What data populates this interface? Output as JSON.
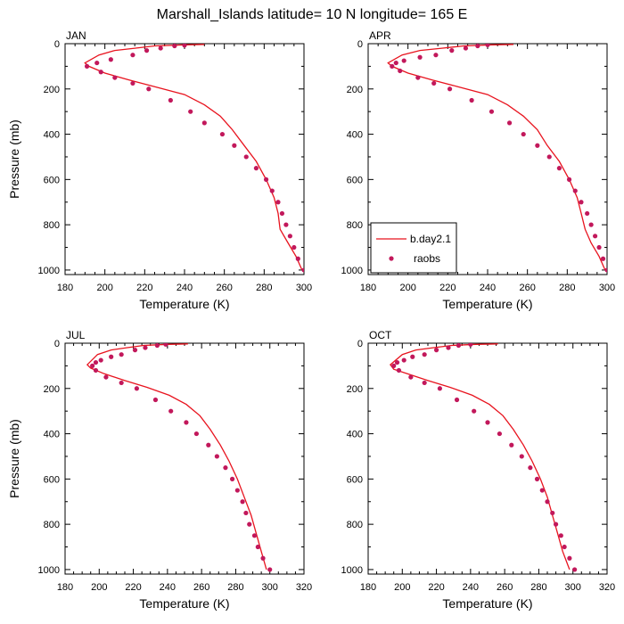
{
  "figure": {
    "title": "Marshall_Islands  latitude= 10 N longitude= 165 E",
    "model_color": "#e8131e",
    "obs_color": "#c2185b"
  },
  "chart_data": [
    {
      "type": "line",
      "panel_label": "JAN",
      "xlabel": "Temperature (K)",
      "ylabel": "Pressure (mb)",
      "xlim": [
        180,
        300
      ],
      "ylim": [
        1020,
        0
      ],
      "xticks": [
        180,
        200,
        220,
        240,
        260,
        280,
        300
      ],
      "yticks": [
        0,
        200,
        400,
        600,
        800,
        1000
      ],
      "legend": null,
      "series": [
        {
          "name": "b.day2.1",
          "kind": "line",
          "points": [
            [
              250,
              3
            ],
            [
              240,
              5
            ],
            [
              225,
              10
            ],
            [
              215,
              20
            ],
            [
              205,
              30
            ],
            [
              197,
              50
            ],
            [
              190,
              85
            ],
            [
              192,
              100
            ],
            [
              200,
              130
            ],
            [
              212,
              160
            ],
            [
              225,
              190
            ],
            [
              240,
              225
            ],
            [
              250,
              270
            ],
            [
              258,
              320
            ],
            [
              264,
              380
            ],
            [
              270,
              450
            ],
            [
              276,
              520
            ],
            [
              281,
              600
            ],
            [
              285,
              680
            ],
            [
              287,
              750
            ],
            [
              288,
              820
            ],
            [
              292,
              880
            ],
            [
              296,
              940
            ],
            [
              299,
              1000
            ]
          ]
        },
        {
          "name": "raobs",
          "kind": "marker",
          "points": [
            [
              240,
              7
            ],
            [
              235,
              10
            ],
            [
              228,
              20
            ],
            [
              221,
              30
            ],
            [
              214,
              50
            ],
            [
              203,
              70
            ],
            [
              196,
              85
            ],
            [
              191,
              100
            ],
            [
              198,
              125
            ],
            [
              205,
              150
            ],
            [
              214,
              175
            ],
            [
              222,
              200
            ],
            [
              233,
              250
            ],
            [
              243,
              300
            ],
            [
              250,
              350
            ],
            [
              259,
              400
            ],
            [
              265,
              450
            ],
            [
              271,
              500
            ],
            [
              276,
              550
            ],
            [
              281,
              600
            ],
            [
              284,
              650
            ],
            [
              287,
              700
            ],
            [
              289,
              750
            ],
            [
              291,
              800
            ],
            [
              293,
              850
            ],
            [
              295,
              900
            ],
            [
              297,
              950
            ],
            [
              300,
              1000
            ]
          ]
        }
      ]
    },
    {
      "type": "line",
      "panel_label": "APR",
      "xlabel": "Temperature (K)",
      "ylabel": "",
      "xlim": [
        180,
        300
      ],
      "ylim": [
        1020,
        0
      ],
      "xticks": [
        180,
        200,
        220,
        240,
        260,
        280,
        300
      ],
      "yticks": [
        0,
        200,
        400,
        600,
        800,
        1000
      ],
      "legend": {
        "position": "bottom-left",
        "entries": [
          "b.day2.1",
          "raobs"
        ]
      },
      "series": [
        {
          "name": "b.day2.1",
          "kind": "line",
          "points": [
            [
              253,
              3
            ],
            [
              242,
              5
            ],
            [
              228,
              10
            ],
            [
              217,
              20
            ],
            [
              206,
              30
            ],
            [
              197,
              50
            ],
            [
              190,
              85
            ],
            [
              192,
              100
            ],
            [
              200,
              130
            ],
            [
              212,
              160
            ],
            [
              225,
              190
            ],
            [
              240,
              225
            ],
            [
              250,
              270
            ],
            [
              258,
              320
            ],
            [
              265,
              380
            ],
            [
              270,
              450
            ],
            [
              276,
              520
            ],
            [
              281,
              600
            ],
            [
              285,
              680
            ],
            [
              287,
              750
            ],
            [
              289,
              820
            ],
            [
              292,
              880
            ],
            [
              296,
              940
            ],
            [
              299,
              1000
            ]
          ]
        },
        {
          "name": "raobs",
          "kind": "marker",
          "points": [
            [
              240,
              5
            ],
            [
              235,
              10
            ],
            [
              229,
              20
            ],
            [
              222,
              30
            ],
            [
              214,
              50
            ],
            [
              206,
              60
            ],
            [
              198,
              75
            ],
            [
              194,
              85
            ],
            [
              192,
              100
            ],
            [
              196,
              120
            ],
            [
              205,
              150
            ],
            [
              213,
              175
            ],
            [
              221,
              200
            ],
            [
              232,
              250
            ],
            [
              242,
              300
            ],
            [
              251,
              350
            ],
            [
              258,
              400
            ],
            [
              265,
              450
            ],
            [
              271,
              500
            ],
            [
              276,
              550
            ],
            [
              281,
              600
            ],
            [
              284,
              650
            ],
            [
              287,
              700
            ],
            [
              290,
              750
            ],
            [
              292,
              800
            ],
            [
              294,
              850
            ],
            [
              296,
              900
            ],
            [
              298,
              950
            ],
            [
              300,
              1000
            ]
          ]
        }
      ]
    },
    {
      "type": "line",
      "panel_label": "JUL",
      "xlabel": "Temperature (K)",
      "ylabel": "Pressure (mb)",
      "xlim": [
        180,
        320
      ],
      "ylim": [
        1020,
        0
      ],
      "xticks": [
        180,
        200,
        220,
        240,
        260,
        280,
        300,
        320
      ],
      "yticks": [
        0,
        200,
        400,
        600,
        800,
        1000
      ],
      "legend": null,
      "series": [
        {
          "name": "b.day2.1",
          "kind": "line",
          "points": [
            [
              252,
              3
            ],
            [
              240,
              5
            ],
            [
              226,
              10
            ],
            [
              216,
              20
            ],
            [
              207,
              30
            ],
            [
              199,
              50
            ],
            [
              193,
              95
            ],
            [
              195,
              110
            ],
            [
              203,
              135
            ],
            [
              215,
              165
            ],
            [
              228,
              195
            ],
            [
              241,
              230
            ],
            [
              251,
              270
            ],
            [
              259,
              320
            ],
            [
              265,
              380
            ],
            [
              271,
              450
            ],
            [
              276,
              520
            ],
            [
              281,
              600
            ],
            [
              285,
              680
            ],
            [
              289,
              760
            ],
            [
              292,
              840
            ],
            [
              295,
              920
            ],
            [
              298,
              1000
            ]
          ]
        },
        {
          "name": "raobs",
          "kind": "marker",
          "points": [
            [
              239,
              5
            ],
            [
              234,
              10
            ],
            [
              227,
              20
            ],
            [
              221,
              30
            ],
            [
              213,
              50
            ],
            [
              207,
              60
            ],
            [
              201,
              75
            ],
            [
              198,
              85
            ],
            [
              196,
              100
            ],
            [
              198,
              120
            ],
            [
              204,
              150
            ],
            [
              213,
              175
            ],
            [
              222,
              200
            ],
            [
              233,
              250
            ],
            [
              242,
              300
            ],
            [
              251,
              350
            ],
            [
              257,
              400
            ],
            [
              264,
              450
            ],
            [
              269,
              500
            ],
            [
              274,
              550
            ],
            [
              278,
              600
            ],
            [
              281,
              650
            ],
            [
              284,
              700
            ],
            [
              286,
              750
            ],
            [
              288,
              800
            ],
            [
              291,
              850
            ],
            [
              293,
              900
            ],
            [
              296,
              950
            ],
            [
              300,
              1000
            ]
          ]
        }
      ]
    },
    {
      "type": "line",
      "panel_label": "OCT",
      "xlabel": "Temperature (K)",
      "ylabel": "",
      "xlim": [
        180,
        320
      ],
      "ylim": [
        1020,
        0
      ],
      "xticks": [
        180,
        200,
        220,
        240,
        260,
        280,
        300,
        320
      ],
      "yticks": [
        0,
        200,
        400,
        600,
        800,
        1000
      ],
      "legend": null,
      "series": [
        {
          "name": "b.day2.1",
          "kind": "line",
          "points": [
            [
              256,
              3
            ],
            [
              243,
              5
            ],
            [
              229,
              10
            ],
            [
              218,
              20
            ],
            [
              208,
              30
            ],
            [
              200,
              50
            ],
            [
              193,
              95
            ],
            [
              195,
              115
            ],
            [
              203,
              135
            ],
            [
              215,
              165
            ],
            [
              228,
              195
            ],
            [
              241,
              230
            ],
            [
              251,
              270
            ],
            [
              259,
              320
            ],
            [
              265,
              380
            ],
            [
              271,
              450
            ],
            [
              276,
              520
            ],
            [
              281,
              600
            ],
            [
              285,
              680
            ],
            [
              288,
              760
            ],
            [
              291,
              840
            ],
            [
              294,
              920
            ],
            [
              298,
              1000
            ]
          ]
        },
        {
          "name": "raobs",
          "kind": "marker",
          "points": [
            [
              240,
              5
            ],
            [
              233,
              10
            ],
            [
              227,
              20
            ],
            [
              220,
              30
            ],
            [
              213,
              50
            ],
            [
              206,
              60
            ],
            [
              201,
              75
            ],
            [
              197,
              85
            ],
            [
              195,
              100
            ],
            [
              198,
              120
            ],
            [
              205,
              150
            ],
            [
              213,
              175
            ],
            [
              222,
              200
            ],
            [
              232,
              250
            ],
            [
              242,
              300
            ],
            [
              250,
              350
            ],
            [
              257,
              400
            ],
            [
              264,
              450
            ],
            [
              270,
              500
            ],
            [
              275,
              550
            ],
            [
              279,
              600
            ],
            [
              282,
              650
            ],
            [
              285,
              700
            ],
            [
              288,
              750
            ],
            [
              290,
              800
            ],
            [
              293,
              850
            ],
            [
              295,
              900
            ],
            [
              298,
              950
            ],
            [
              301,
              1000
            ]
          ]
        }
      ]
    }
  ]
}
